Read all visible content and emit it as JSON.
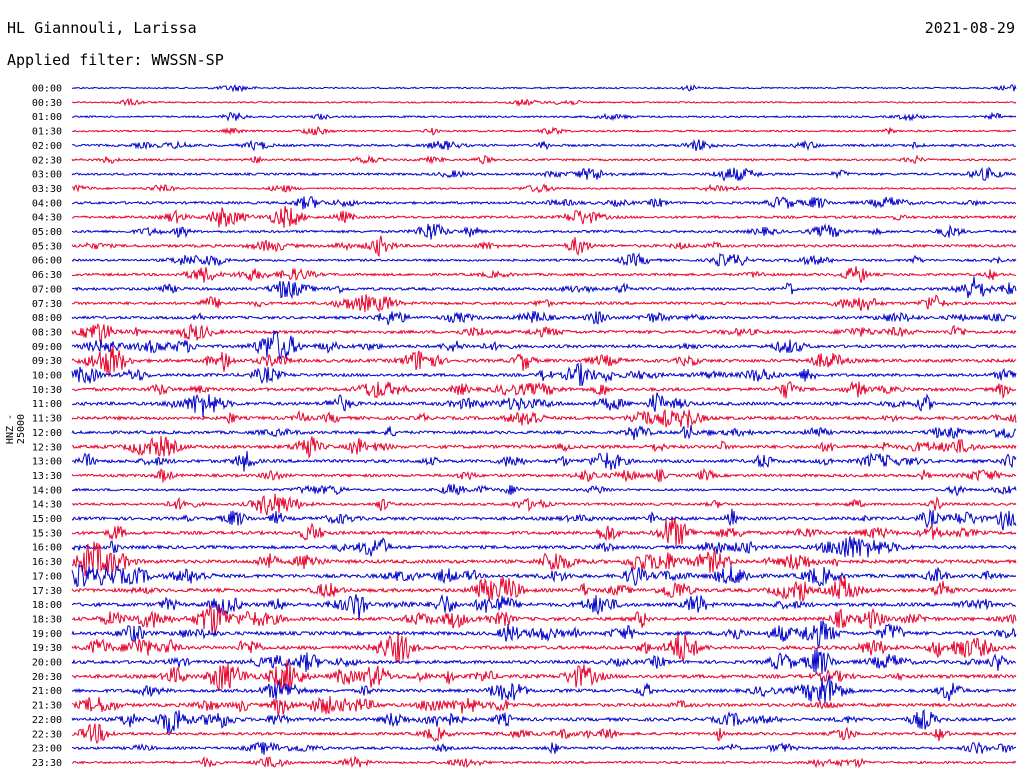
{
  "header": {
    "station": "HL Giannouli, Larissa",
    "date": "2021-08-29",
    "filter": "Applied filter: WWSSN-SP"
  },
  "colors": {
    "trace_a": "#0000cc",
    "trace_b": "#e8002a"
  },
  "chart_data": {
    "type": "line",
    "ylabel": "HNZ - 25000",
    "row_labels": [
      "00:00",
      "00:30",
      "01:00",
      "01:30",
      "02:00",
      "02:30",
      "03:00",
      "03:30",
      "04:00",
      "04:30",
      "05:00",
      "05:30",
      "06:00",
      "06:30",
      "07:00",
      "07:30",
      "08:00",
      "08:30",
      "09:00",
      "09:30",
      "10:00",
      "10:30",
      "11:00",
      "11:30",
      "12:00",
      "12:30",
      "13:00",
      "13:30",
      "14:00",
      "14:30",
      "15:00",
      "15:30",
      "16:00",
      "16:30",
      "17:00",
      "17:30",
      "18:00",
      "18:30",
      "19:00",
      "19:30",
      "20:00",
      "20:30",
      "21:00",
      "21:30",
      "22:00",
      "22:30",
      "23:00",
      "23:30"
    ],
    "row_activity": [
      0.1,
      0.1,
      0.2,
      0.2,
      0.4,
      0.3,
      0.4,
      0.2,
      0.5,
      0.5,
      0.5,
      0.6,
      0.4,
      0.5,
      0.6,
      0.6,
      0.6,
      0.7,
      0.7,
      0.8,
      0.7,
      0.8,
      0.8,
      0.8,
      0.7,
      0.8,
      0.8,
      0.6,
      0.4,
      0.5,
      0.8,
      0.8,
      0.8,
      0.9,
      0.9,
      0.9,
      0.9,
      0.9,
      0.9,
      0.9,
      0.8,
      0.9,
      0.8,
      0.8,
      0.8,
      0.6,
      0.5,
      0.4
    ]
  }
}
